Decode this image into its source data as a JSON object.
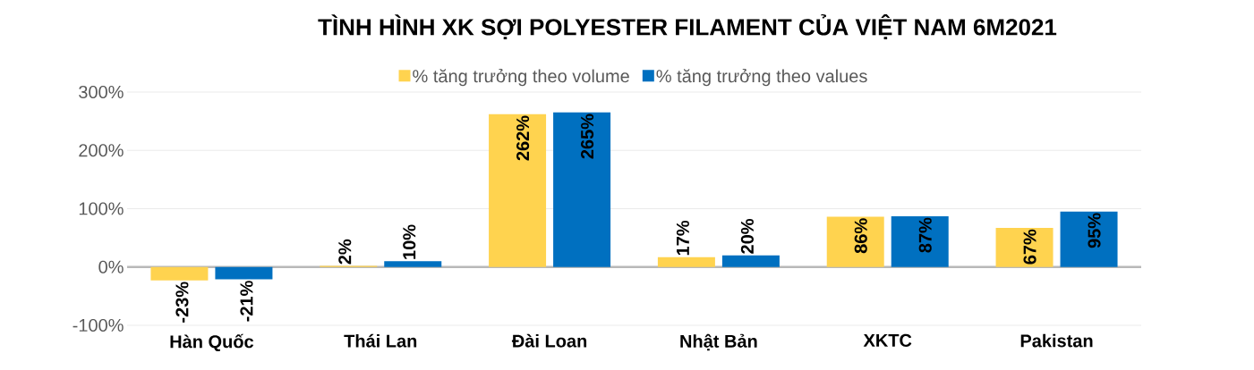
{
  "chart_data": {
    "type": "bar",
    "title": "TÌNH HÌNH XK SỢI POLYESTER FILAMENT CỦA VIỆT NAM 6M2021",
    "categories": [
      "Hàn Quốc",
      "Thái Lan",
      "Đài Loan",
      "Nhật Bản",
      "XKTC",
      "Pakistan"
    ],
    "series": [
      {
        "name": "% tăng trưởng theo volume",
        "color": "#ffd34f",
        "values": [
          -23,
          2,
          262,
          17,
          86,
          67
        ],
        "value_labels": [
          "-23%",
          "2%",
          "262%",
          "17%",
          "86%",
          "67%"
        ]
      },
      {
        "name": "% tăng trưởng theo values",
        "color": "#0070c0",
        "values": [
          -21,
          10,
          265,
          20,
          87,
          95
        ],
        "value_labels": [
          "-21%",
          "10%",
          "265%",
          "20%",
          "87%",
          "95%"
        ]
      }
    ],
    "ylim": [
      -100,
      300
    ],
    "yticks": [
      {
        "value": -100,
        "label": "-100%"
      },
      {
        "value": 0,
        "label": "0%"
      },
      {
        "value": 100,
        "label": "100%"
      },
      {
        "value": 200,
        "label": "200%"
      },
      {
        "value": 300,
        "label": "300%"
      }
    ],
    "grid": "y",
    "legend": "top"
  }
}
